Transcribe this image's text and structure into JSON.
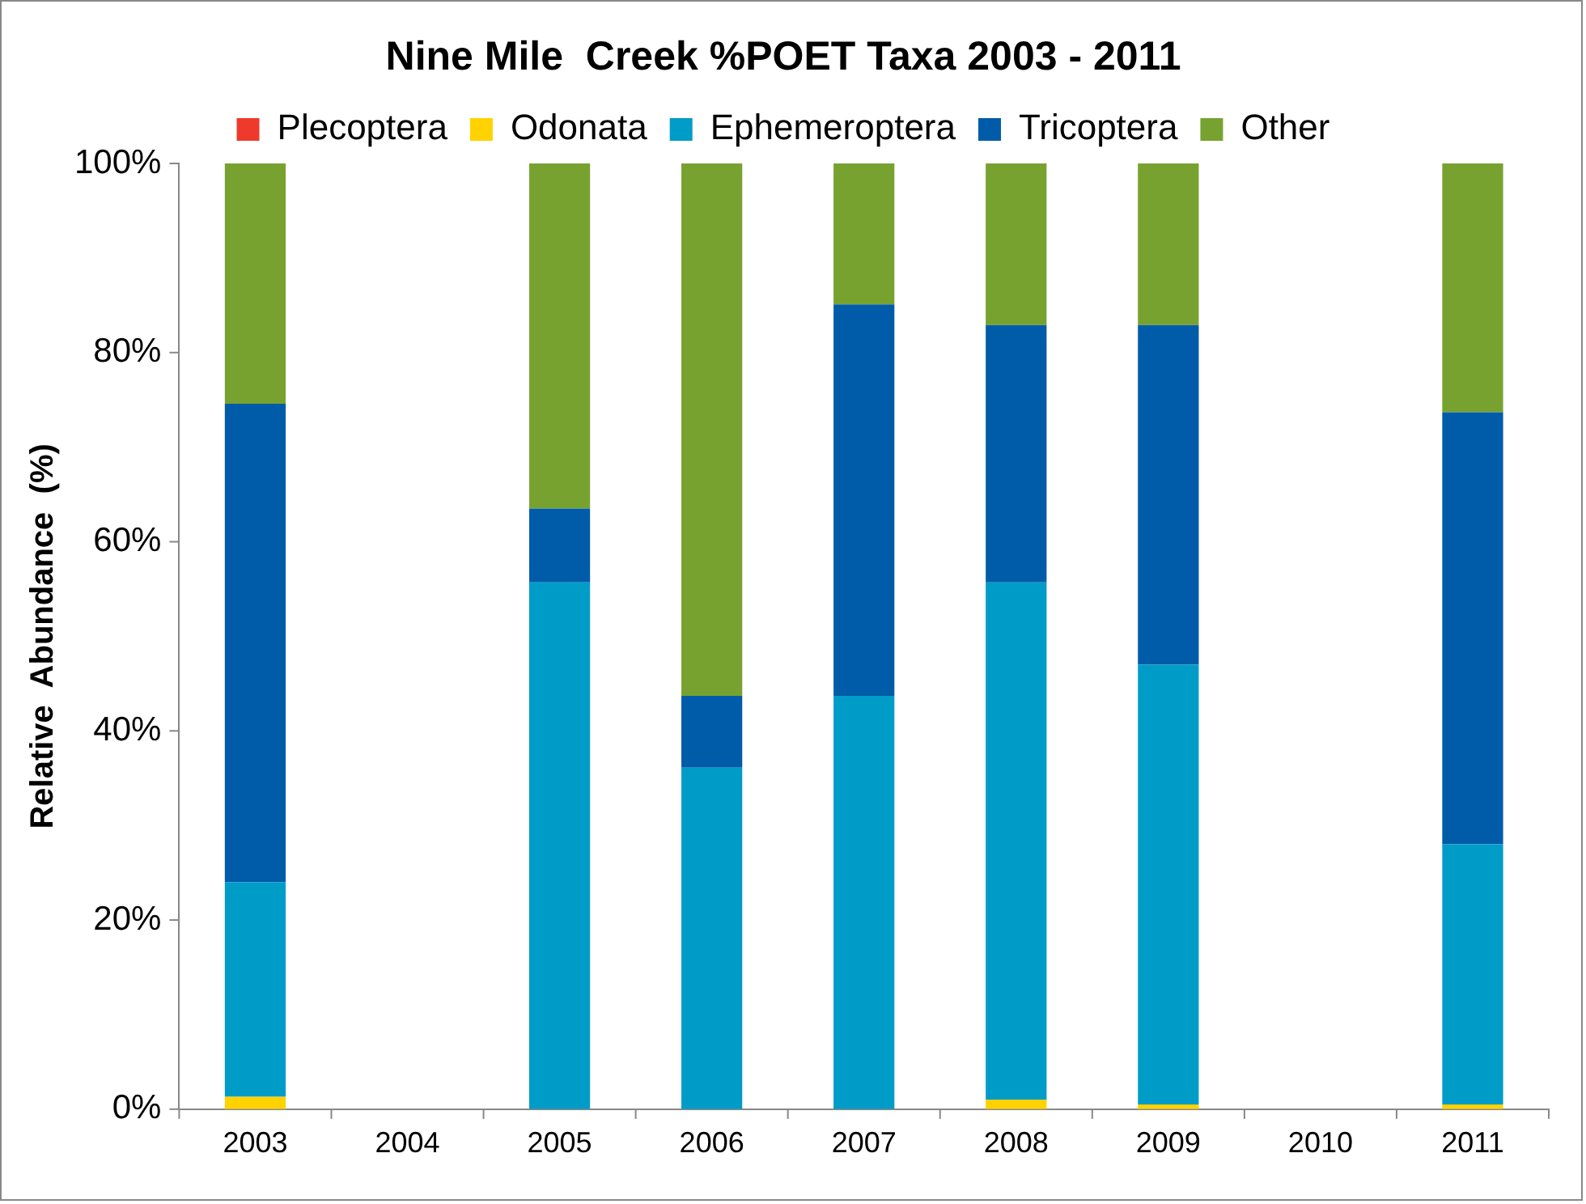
{
  "chart_data": {
    "type": "bar",
    "title": "Nine Mile  Creek %POET Taxa 2003 - 2011",
    "ylabel": "Relative  Abundance  (%)",
    "categories": [
      "2003",
      "2004",
      "2005",
      "2006",
      "2007",
      "2008",
      "2009",
      "2010",
      "2011"
    ],
    "stacked": true,
    "legend": "top",
    "grid": false,
    "ylim": [
      0,
      100
    ],
    "yticks": [
      {
        "value": 0,
        "label": "0%"
      },
      {
        "value": 20,
        "label": "20%"
      },
      {
        "value": 40,
        "label": "40%"
      },
      {
        "value": 60,
        "label": "60%"
      },
      {
        "value": 80,
        "label": "80%"
      },
      {
        "value": 100,
        "label": "100%"
      }
    ],
    "series": [
      {
        "name": "Plecoptera",
        "color": "#ee3a2d",
        "values": [
          0,
          null,
          0,
          0,
          0,
          0,
          0,
          null,
          0
        ]
      },
      {
        "name": "Odonata",
        "color": "#ffd200",
        "values": [
          1.3,
          null,
          0,
          0,
          0,
          1.0,
          0.5,
          null,
          0.5
        ]
      },
      {
        "name": "Ephemeroptera",
        "color": "#009cc8",
        "values": [
          22.7,
          null,
          55.7,
          36.1,
          43.7,
          54.7,
          46.5,
          null,
          27.5
        ]
      },
      {
        "name": "Tricoptera",
        "color": "#005ca8",
        "values": [
          50.6,
          null,
          7.8,
          7.6,
          41.4,
          27.2,
          35.9,
          null,
          45.7
        ]
      },
      {
        "name": "Other",
        "color": "#78a22f",
        "values": [
          25.4,
          null,
          36.5,
          56.3,
          14.9,
          17.1,
          17.1,
          null,
          26.3
        ]
      }
    ]
  }
}
